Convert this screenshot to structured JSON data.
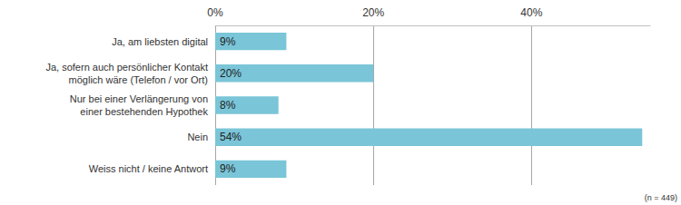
{
  "chart_data": {
    "type": "bar",
    "orientation": "horizontal",
    "categories": [
      "Ja, am liebsten digital",
      "Ja, sofern auch persönlicher Kontakt\nmöglich wäre (Telefon / vor Ort)",
      "Nur bei einer Verlängerung von\neiner bestehenden Hypothek",
      "Nein",
      "Weiss nicht / keine Antwort"
    ],
    "values": [
      9,
      20,
      8,
      54,
      9
    ],
    "value_labels": [
      "9%",
      "20%",
      "8%",
      "54%",
      "9%"
    ],
    "data_labels": true,
    "color": "#7ac5d8",
    "xlim": [
      0,
      55
    ],
    "xticks": [
      {
        "value": 0,
        "label": "0%"
      },
      {
        "value": 20,
        "label": "20%"
      },
      {
        "value": 40,
        "label": "40%"
      }
    ],
    "grid": true,
    "annotations": [
      "(n = 449)"
    ]
  }
}
